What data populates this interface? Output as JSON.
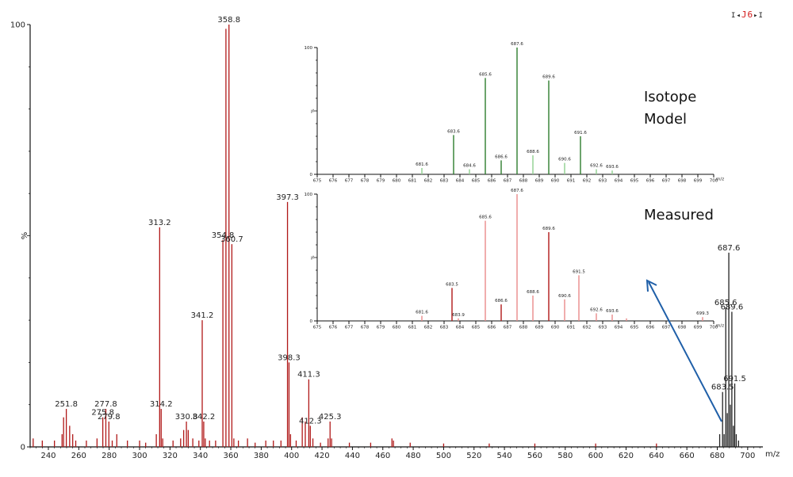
{
  "header": {
    "left_marker": "I◂",
    "label": "J6",
    "right_marker": "▸I"
  },
  "colors": {
    "main": "#b01818",
    "model": "#2e8b2e",
    "measured": "#d33a3a",
    "arrow": "#1f5fa8",
    "axis": "#111111"
  },
  "chart_data": [
    {
      "type": "bar",
      "role": "main-spectrum",
      "xlabel": "m/z",
      "ylabel": "%",
      "xlim": [
        228,
        710
      ],
      "ylim": [
        0,
        100
      ],
      "x_ticks": [
        240,
        260,
        280,
        300,
        320,
        340,
        360,
        380,
        400,
        420,
        440,
        460,
        480,
        500,
        520,
        540,
        560,
        580,
        600,
        620,
        640,
        660,
        680,
        700
      ],
      "y_ticks": [
        0,
        100
      ],
      "y_tick_labels": [
        "0",
        "100"
      ],
      "peaks": [
        {
          "x": 230,
          "y": 2
        },
        {
          "x": 236,
          "y": 1.5
        },
        {
          "x": 244,
          "y": 1.5
        },
        {
          "x": 249,
          "y": 3
        },
        {
          "x": 250,
          "y": 7
        },
        {
          "x": 251.8,
          "y": 9
        },
        {
          "x": 254,
          "y": 5
        },
        {
          "x": 256,
          "y": 3
        },
        {
          "x": 258,
          "y": 1.5
        },
        {
          "x": 265,
          "y": 1.5
        },
        {
          "x": 272,
          "y": 2
        },
        {
          "x": 275.8,
          "y": 7
        },
        {
          "x": 277.8,
          "y": 9
        },
        {
          "x": 279.8,
          "y": 6
        },
        {
          "x": 282,
          "y": 1.5
        },
        {
          "x": 285,
          "y": 3
        },
        {
          "x": 292,
          "y": 1.5
        },
        {
          "x": 300,
          "y": 1.5
        },
        {
          "x": 304,
          "y": 1
        },
        {
          "x": 311,
          "y": 3
        },
        {
          "x": 313.2,
          "y": 52
        },
        {
          "x": 314.2,
          "y": 9
        },
        {
          "x": 315.2,
          "y": 2
        },
        {
          "x": 322,
          "y": 1.5
        },
        {
          "x": 327,
          "y": 2
        },
        {
          "x": 329,
          "y": 4
        },
        {
          "x": 330.8,
          "y": 6
        },
        {
          "x": 332,
          "y": 4
        },
        {
          "x": 335,
          "y": 2
        },
        {
          "x": 339,
          "y": 1.5
        },
        {
          "x": 341.2,
          "y": 30
        },
        {
          "x": 342.2,
          "y": 6
        },
        {
          "x": 343.2,
          "y": 2
        },
        {
          "x": 346,
          "y": 1.5
        },
        {
          "x": 350,
          "y": 1.5
        },
        {
          "x": 354.8,
          "y": 49
        },
        {
          "x": 356.8,
          "y": 99
        },
        {
          "x": 358.8,
          "y": 100
        },
        {
          "x": 360.7,
          "y": 48
        },
        {
          "x": 362,
          "y": 2
        },
        {
          "x": 365,
          "y": 1.5
        },
        {
          "x": 371,
          "y": 2
        },
        {
          "x": 376,
          "y": 1
        },
        {
          "x": 383,
          "y": 1.5
        },
        {
          "x": 388,
          "y": 1.5
        },
        {
          "x": 393,
          "y": 1.5
        },
        {
          "x": 397.3,
          "y": 58
        },
        {
          "x": 398.3,
          "y": 20
        },
        {
          "x": 399.3,
          "y": 3
        },
        {
          "x": 403,
          "y": 1.5
        },
        {
          "x": 407,
          "y": 7
        },
        {
          "x": 409,
          "y": 6
        },
        {
          "x": 411.3,
          "y": 16
        },
        {
          "x": 412.3,
          "y": 5
        },
        {
          "x": 414,
          "y": 2
        },
        {
          "x": 419,
          "y": 1
        },
        {
          "x": 424,
          "y": 2
        },
        {
          "x": 425.3,
          "y": 6
        },
        {
          "x": 426.3,
          "y": 2
        },
        {
          "x": 438,
          "y": 1
        },
        {
          "x": 452,
          "y": 1
        },
        {
          "x": 466,
          "y": 2
        },
        {
          "x": 467,
          "y": 1.5
        },
        {
          "x": 478,
          "y": 1
        },
        {
          "x": 500,
          "y": 0.8
        },
        {
          "x": 530,
          "y": 0.8
        },
        {
          "x": 560,
          "y": 0.8
        },
        {
          "x": 600,
          "y": 0.8
        },
        {
          "x": 640,
          "y": 0.8
        },
        {
          "x": 681.6,
          "y": 3
        },
        {
          "x": 683.5,
          "y": 13
        },
        {
          "x": 684.5,
          "y": 3
        },
        {
          "x": 685.6,
          "y": 33
        },
        {
          "x": 686.6,
          "y": 8
        },
        {
          "x": 687.6,
          "y": 46
        },
        {
          "x": 688.6,
          "y": 10
        },
        {
          "x": 689.6,
          "y": 32
        },
        {
          "x": 690.6,
          "y": 5
        },
        {
          "x": 691.5,
          "y": 15
        },
        {
          "x": 692.5,
          "y": 3
        },
        {
          "x": 694,
          "y": 1.5
        }
      ],
      "labels": [
        {
          "x": 251.8,
          "y": 9,
          "text": "251.8"
        },
        {
          "x": 275.8,
          "y": 7,
          "text": "275.8"
        },
        {
          "x": 277.8,
          "y": 9,
          "text": "277.8"
        },
        {
          "x": 279.8,
          "y": 6,
          "text": "279.8"
        },
        {
          "x": 313.2,
          "y": 52,
          "text": "313.2"
        },
        {
          "x": 314.2,
          "y": 9,
          "text": "314.2"
        },
        {
          "x": 330.8,
          "y": 6,
          "text": "330.8"
        },
        {
          "x": 341.2,
          "y": 30,
          "text": "341.2"
        },
        {
          "x": 342.2,
          "y": 6,
          "text": "342.2"
        },
        {
          "x": 354.8,
          "y": 49,
          "text": "354.8"
        },
        {
          "x": 358.8,
          "y": 100,
          "text": "358.8"
        },
        {
          "x": 360.7,
          "y": 48,
          "text": "360.7"
        },
        {
          "x": 397.3,
          "y": 58,
          "text": "397.3"
        },
        {
          "x": 398.3,
          "y": 20,
          "text": "398.3"
        },
        {
          "x": 411.3,
          "y": 16,
          "text": "411.3"
        },
        {
          "x": 412.3,
          "y": 5,
          "text": "412.3"
        },
        {
          "x": 425.3,
          "y": 6,
          "text": "425.3"
        },
        {
          "x": 683.5,
          "y": 13,
          "text": "683.5"
        },
        {
          "x": 685.6,
          "y": 33,
          "text": "685.6"
        },
        {
          "x": 687.6,
          "y": 46,
          "text": "687.6"
        },
        {
          "x": 689.6,
          "y": 32,
          "text": "689.6"
        },
        {
          "x": 691.5,
          "y": 15,
          "text": "691.5"
        }
      ]
    },
    {
      "type": "bar",
      "role": "isotope-model",
      "title": "Isotope Model",
      "xlabel": "m/z",
      "ylabel": "%",
      "xlim": [
        675,
        700
      ],
      "ylim": [
        0,
        100
      ],
      "x_ticks": [
        675,
        676,
        677,
        678,
        679,
        680,
        681,
        682,
        683,
        684,
        685,
        686,
        687,
        688,
        689,
        690,
        691,
        692,
        693,
        694,
        695,
        696,
        697,
        698,
        699,
        700
      ],
      "y_ticks": [
        0,
        100
      ],
      "y_tick_labels": [
        "0",
        "100"
      ],
      "peaks": [
        {
          "x": 681.6,
          "y": 5
        },
        {
          "x": 683.6,
          "y": 31
        },
        {
          "x": 684.6,
          "y": 4
        },
        {
          "x": 685.6,
          "y": 76
        },
        {
          "x": 686.6,
          "y": 11
        },
        {
          "x": 687.6,
          "y": 100
        },
        {
          "x": 688.6,
          "y": 15
        },
        {
          "x": 689.6,
          "y": 74
        },
        {
          "x": 690.6,
          "y": 9
        },
        {
          "x": 691.6,
          "y": 30
        },
        {
          "x": 692.6,
          "y": 4
        },
        {
          "x": 693.6,
          "y": 3
        }
      ],
      "labels": [
        {
          "x": 681.6,
          "y": 5,
          "text": "681.6"
        },
        {
          "x": 683.6,
          "y": 31,
          "text": "683.6"
        },
        {
          "x": 684.6,
          "y": 4,
          "text": "684.6"
        },
        {
          "x": 685.6,
          "y": 76,
          "text": "685.6"
        },
        {
          "x": 686.6,
          "y": 11,
          "text": "686.6"
        },
        {
          "x": 687.6,
          "y": 100,
          "text": "687.6"
        },
        {
          "x": 688.6,
          "y": 15,
          "text": "688.6"
        },
        {
          "x": 689.6,
          "y": 74,
          "text": "689.6"
        },
        {
          "x": 690.6,
          "y": 9,
          "text": "690.6"
        },
        {
          "x": 691.6,
          "y": 30,
          "text": "691.6"
        },
        {
          "x": 692.6,
          "y": 4,
          "text": "692.6"
        },
        {
          "x": 693.6,
          "y": 3,
          "text": "693.6"
        }
      ]
    },
    {
      "type": "bar",
      "role": "measured",
      "title": "Measured",
      "xlabel": "m/z",
      "ylabel": "%",
      "xlim": [
        675,
        700
      ],
      "ylim": [
        0,
        100
      ],
      "x_ticks": [
        675,
        676,
        677,
        678,
        679,
        680,
        681,
        682,
        683,
        684,
        685,
        686,
        687,
        688,
        689,
        690,
        691,
        692,
        693,
        694,
        695,
        696,
        697,
        698,
        699,
        700
      ],
      "y_ticks": [
        0,
        100
      ],
      "y_tick_labels": [
        "0",
        "100"
      ],
      "peaks": [
        {
          "x": 681.6,
          "y": 4
        },
        {
          "x": 683.5,
          "y": 26
        },
        {
          "x": 683.9,
          "y": 2
        },
        {
          "x": 685.6,
          "y": 79
        },
        {
          "x": 686.6,
          "y": 13
        },
        {
          "x": 687.6,
          "y": 100
        },
        {
          "x": 688.6,
          "y": 20
        },
        {
          "x": 689.6,
          "y": 70
        },
        {
          "x": 690.6,
          "y": 17
        },
        {
          "x": 691.5,
          "y": 36
        },
        {
          "x": 692.6,
          "y": 6
        },
        {
          "x": 693.6,
          "y": 5
        },
        {
          "x": 694.5,
          "y": 2
        },
        {
          "x": 699.3,
          "y": 3
        }
      ],
      "labels": [
        {
          "x": 681.6,
          "y": 4,
          "text": "681.6"
        },
        {
          "x": 683.5,
          "y": 26,
          "text": "683.5"
        },
        {
          "x": 683.9,
          "y": 2,
          "text": "683.9"
        },
        {
          "x": 685.6,
          "y": 79,
          "text": "685.6"
        },
        {
          "x": 686.6,
          "y": 13,
          "text": "686.6"
        },
        {
          "x": 687.6,
          "y": 100,
          "text": "687.6"
        },
        {
          "x": 688.6,
          "y": 20,
          "text": "688.6"
        },
        {
          "x": 689.6,
          "y": 70,
          "text": "689.6"
        },
        {
          "x": 690.6,
          "y": 17,
          "text": "690.6"
        },
        {
          "x": 691.5,
          "y": 36,
          "text": "691.5"
        },
        {
          "x": 692.6,
          "y": 6,
          "text": "692.6"
        },
        {
          "x": 693.6,
          "y": 5,
          "text": "693.6"
        },
        {
          "x": 699.3,
          "y": 3,
          "text": "699.3"
        }
      ]
    }
  ]
}
